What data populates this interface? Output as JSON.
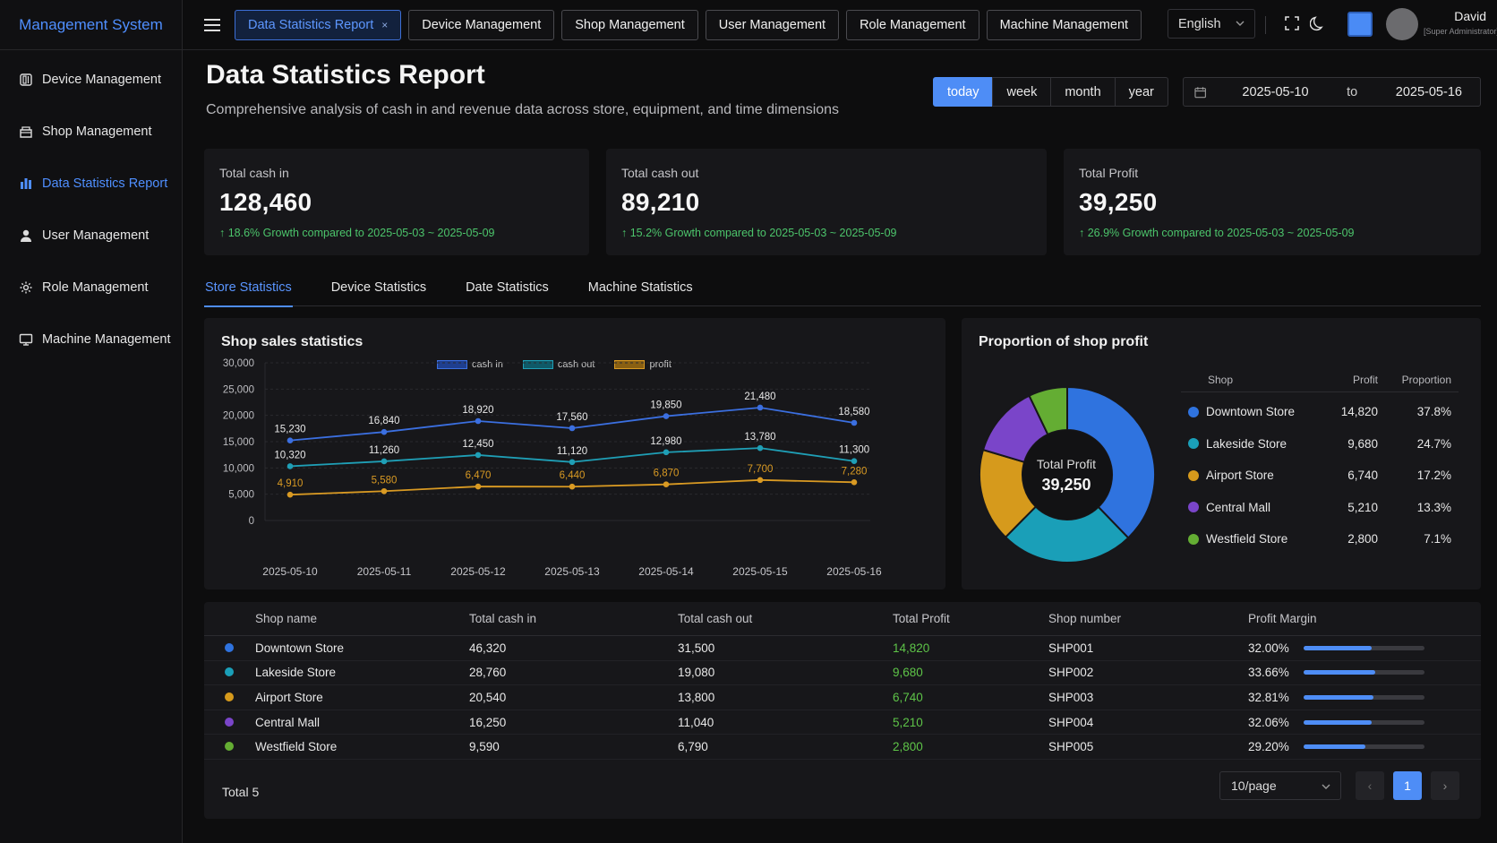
{
  "brand": "Management System",
  "sidebar": {
    "items": [
      {
        "label": "Device Management",
        "icon": "device-icon",
        "active": false
      },
      {
        "label": "Shop Management",
        "icon": "shop-icon",
        "active": false
      },
      {
        "label": "Data Statistics Report",
        "icon": "chart-icon",
        "active": true
      },
      {
        "label": "User Management",
        "icon": "user-icon",
        "active": false
      },
      {
        "label": "Role Management",
        "icon": "gear-icon",
        "active": false
      },
      {
        "label": "Machine Management",
        "icon": "monitor-icon",
        "active": false
      }
    ]
  },
  "header": {
    "tabs": [
      {
        "label": "Data Statistics Report",
        "active": true,
        "close": "×"
      },
      {
        "label": "Device Management",
        "active": false
      },
      {
        "label": "Shop Management",
        "active": false
      },
      {
        "label": "User Management",
        "active": false
      },
      {
        "label": "Role Management",
        "active": false
      },
      {
        "label": "Machine Management",
        "active": false
      }
    ],
    "language": "English",
    "user": {
      "name": "David",
      "role": "[Super Administrator]"
    }
  },
  "page": {
    "title": "Data Statistics Report",
    "subtitle": "Comprehensive analysis of cash in and revenue data across store, equipment, and time dimensions"
  },
  "period": {
    "options": [
      "today",
      "week",
      "month",
      "year"
    ],
    "selected": "today"
  },
  "date_range": {
    "start": "2025-05-10",
    "separator": "to",
    "end": "2025-05-16"
  },
  "kpis": [
    {
      "label": "Total cash in",
      "value": "128,460",
      "growth": "↑ 18.6% Growth compared to 2025-05-03 ~ 2025-05-09"
    },
    {
      "label": "Total cash out",
      "value": "89,210",
      "growth": "↑ 15.2% Growth compared to 2025-05-03 ~ 2025-05-09"
    },
    {
      "label": "Total Profit",
      "value": "39,250",
      "growth": "↑ 26.9% Growth compared to 2025-05-03 ~ 2025-05-09"
    }
  ],
  "subtabs": [
    "Store Statistics",
    "Device Statistics",
    "Date Statistics",
    "Machine Statistics"
  ],
  "colors": {
    "accent": "#4e8df6",
    "cash_in": "#3b6fe0",
    "cash_out": "#1f9fb6",
    "profit": "#d99a23",
    "growth": "#4cc46b",
    "profit_text": "#5ec448",
    "shops": [
      "#2f73df",
      "#1a9fb8",
      "#d69a1c",
      "#7a45c9",
      "#64ad33"
    ]
  },
  "chart_data": [
    {
      "type": "line",
      "title": "Shop sales statistics",
      "x": [
        "2025-05-10",
        "2025-05-11",
        "2025-05-12",
        "2025-05-13",
        "2025-05-14",
        "2025-05-15",
        "2025-05-16"
      ],
      "y_ticks": [
        "30,000",
        "25,000",
        "20,000",
        "15,000",
        "10,000",
        "5,000",
        "0"
      ],
      "ylim": [
        0,
        30000
      ],
      "grid": true,
      "legend_position": "top",
      "series": [
        {
          "name": "cash in",
          "values": [
            15230,
            16840,
            18920,
            17560,
            19850,
            21480,
            18580
          ],
          "labels": [
            "15,230",
            "16,840",
            "18,920",
            "17,560",
            "19,850",
            "21,480",
            "18,580"
          ]
        },
        {
          "name": "cash out",
          "values": [
            10320,
            11260,
            12450,
            11120,
            12980,
            13780,
            11300
          ],
          "labels": [
            "10,320",
            "11,260",
            "12,450",
            "11,120",
            "12,980",
            "13,780",
            "11,300"
          ]
        },
        {
          "name": "profit",
          "values": [
            4910,
            5580,
            6470,
            6440,
            6870,
            7700,
            7280
          ],
          "labels": [
            "4,910",
            "5,580",
            "6,470",
            "6,440",
            "6,870",
            "7,700",
            "7,280"
          ]
        }
      ]
    },
    {
      "type": "pie",
      "title": "Proportion of shop profit",
      "center_label": "Total Profit",
      "center_value": "39,250",
      "columns": [
        "Shop",
        "Profit",
        "Proportion"
      ],
      "slices": [
        {
          "name": "Downtown Store",
          "value": 14820,
          "value_label": "14,820",
          "percent": "37.8%"
        },
        {
          "name": "Lakeside Store",
          "value": 9680,
          "value_label": "9,680",
          "percent": "24.7%"
        },
        {
          "name": "Airport Store",
          "value": 6740,
          "value_label": "6,740",
          "percent": "17.2%"
        },
        {
          "name": "Central Mall",
          "value": 5210,
          "value_label": "5,210",
          "percent": "13.3%"
        },
        {
          "name": "Westfield Store",
          "value": 2800,
          "value_label": "2,800",
          "percent": "7.1%"
        }
      ]
    }
  ],
  "table": {
    "columns": [
      "Shop name",
      "Total cash in",
      "Total cash out",
      "Total Profit",
      "Shop number",
      "Profit Margin"
    ],
    "rows": [
      {
        "name": "Downtown Store",
        "cash_in": "46,320",
        "cash_out": "31,500",
        "profit": "14,820",
        "number": "SHP001",
        "margin": "32.00%",
        "margin_value": 0.32
      },
      {
        "name": "Lakeside Store",
        "cash_in": "28,760",
        "cash_out": "19,080",
        "profit": "9,680",
        "number": "SHP002",
        "margin": "33.66%",
        "margin_value": 0.3366
      },
      {
        "name": "Airport Store",
        "cash_in": "20,540",
        "cash_out": "13,800",
        "profit": "6,740",
        "number": "SHP003",
        "margin": "32.81%",
        "margin_value": 0.3281
      },
      {
        "name": "Central Mall",
        "cash_in": "16,250",
        "cash_out": "11,040",
        "profit": "5,210",
        "number": "SHP004",
        "margin": "32.06%",
        "margin_value": 0.3206
      },
      {
        "name": "Westfield Store",
        "cash_in": "9,590",
        "cash_out": "6,790",
        "profit": "2,800",
        "number": "SHP005",
        "margin": "29.20%",
        "margin_value": 0.292
      }
    ],
    "total": "Total 5",
    "page_size": "10/page",
    "current_page": "1",
    "prev": "‹",
    "next": "›"
  }
}
